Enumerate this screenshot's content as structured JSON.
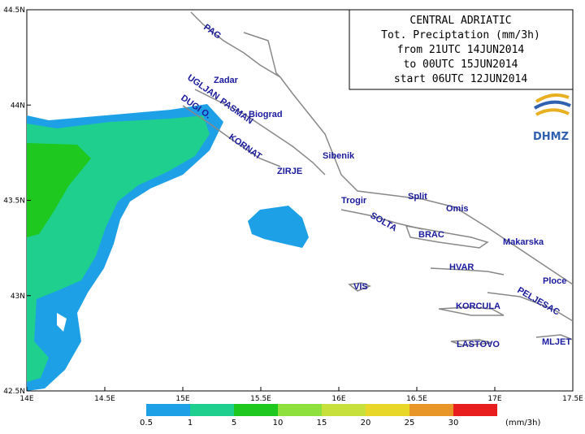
{
  "map": {
    "title_lines": [
      "CENTRAL ADRIATIC",
      "Tot. Preciptation (mm/3h)",
      "from 21UTC 14JUN2014",
      "to 00UTC 15JUN2014",
      "start 06UTC 12JUN2014"
    ],
    "logo": "DHMZ",
    "lon_ticks": [
      {
        "value": 14,
        "label": "14E"
      },
      {
        "value": 14.5,
        "label": "14.5E"
      },
      {
        "value": 15,
        "label": "15E"
      },
      {
        "value": 15.5,
        "label": "15.5E"
      },
      {
        "value": 16,
        "label": "16E"
      },
      {
        "value": 16.5,
        "label": "16.5E"
      },
      {
        "value": 17,
        "label": "17E"
      },
      {
        "value": 17.5,
        "label": "17.5E"
      }
    ],
    "lat_ticks": [
      {
        "value": 42.5,
        "label": "42.5N"
      },
      {
        "value": 43,
        "label": "43N"
      },
      {
        "value": 43.5,
        "label": "43.5N"
      },
      {
        "value": 44,
        "label": "44N"
      },
      {
        "value": 44.5,
        "label": "44.5N"
      }
    ],
    "lonlim": [
      14,
      17.5
    ],
    "latlim": [
      42.5,
      44.5
    ],
    "places": [
      "PAG",
      "Zadar",
      "UGLJAN",
      "PASMAN",
      "Biograd",
      "DUGI O.",
      "KORNAT",
      "Sibenik",
      "ZIRJE",
      "Trogir",
      "Split",
      "Omis",
      "SOLTA",
      "BRAC",
      "Makarska",
      "HVAR",
      "Ploce",
      "VIS",
      "PELJESAC",
      "KORCULA",
      "LASTOVO",
      "MLJET"
    ],
    "legend": {
      "bins": [
        0.5,
        1,
        5,
        10,
        15,
        20,
        25,
        30
      ],
      "colors": [
        "#1ea0e6",
        "#1ecf8e",
        "#1ec81e",
        "#8ee03c",
        "#c8e03c",
        "#e8d628",
        "#e89628",
        "#e81e1e"
      ],
      "unit": "(mm/3h)"
    }
  }
}
